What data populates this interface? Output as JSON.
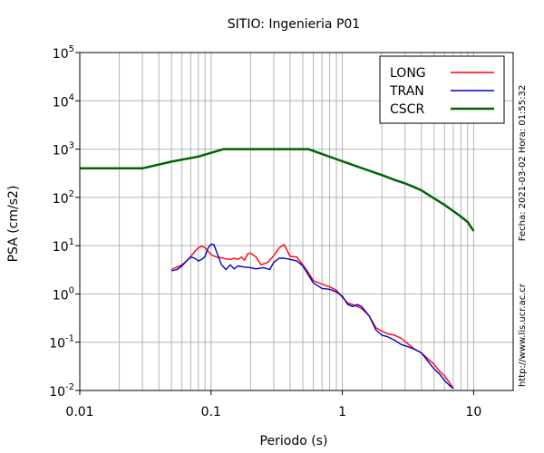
{
  "chart_data": {
    "type": "line",
    "title": "SITIO: Ingenieria P01",
    "xlabel": "Periodo (s)",
    "ylabel": "PSA (cm/s2)",
    "x_scale": "log",
    "y_scale": "log",
    "xlim": [
      0.01,
      20
    ],
    "ylim": [
      0.01,
      100000
    ],
    "x_ticks": [
      {
        "value": 0.01,
        "label": "0.01"
      },
      {
        "value": 0.1,
        "label": "0.1"
      },
      {
        "value": 1,
        "label": "1"
      },
      {
        "value": 10,
        "label": "10"
      }
    ],
    "y_ticks": [
      {
        "value": 0.01,
        "base": "10",
        "exp": "-2"
      },
      {
        "value": 0.1,
        "base": "10",
        "exp": "-1"
      },
      {
        "value": 1,
        "base": "10",
        "exp": "0"
      },
      {
        "value": 10,
        "base": "10",
        "exp": "1"
      },
      {
        "value": 100,
        "base": "10",
        "exp": "2"
      },
      {
        "value": 1000,
        "base": "10",
        "exp": "3"
      },
      {
        "value": 10000,
        "base": "10",
        "exp": "4"
      },
      {
        "value": 100000,
        "base": "10",
        "exp": "5"
      }
    ],
    "grid": true,
    "legend_position": "top-right",
    "series": [
      {
        "name": "LONG",
        "color": "#ff0000",
        "x": [
          0.05,
          0.055,
          0.06,
          0.065,
          0.07,
          0.075,
          0.08,
          0.085,
          0.09,
          0.1,
          0.11,
          0.12,
          0.13,
          0.14,
          0.15,
          0.16,
          0.17,
          0.18,
          0.19,
          0.2,
          0.22,
          0.24,
          0.27,
          0.3,
          0.33,
          0.36,
          0.4,
          0.45,
          0.5,
          0.55,
          0.6,
          0.7,
          0.8,
          0.9,
          1.0,
          1.1,
          1.2,
          1.3,
          1.4,
          1.6,
          1.8,
          2.0,
          2.2,
          2.5,
          2.8,
          3.2,
          3.6,
          4.0,
          4.5,
          5.0,
          5.5,
          6.0,
          6.5,
          7.0
        ],
        "values": [
          3.2,
          3.6,
          4.0,
          4.8,
          6.0,
          7.5,
          9.0,
          9.8,
          9.0,
          6.5,
          5.8,
          5.6,
          5.3,
          5.2,
          5.5,
          5.2,
          5.8,
          5.0,
          6.8,
          7.0,
          5.8,
          4.0,
          4.5,
          6.2,
          9.0,
          10.5,
          6.0,
          5.8,
          4.0,
          2.8,
          1.9,
          1.6,
          1.4,
          1.2,
          0.85,
          0.65,
          0.6,
          0.55,
          0.5,
          0.35,
          0.2,
          0.17,
          0.15,
          0.14,
          0.12,
          0.09,
          0.07,
          0.06,
          0.045,
          0.035,
          0.025,
          0.02,
          0.015,
          0.011
        ]
      },
      {
        "name": "TRAN",
        "color": "#0000cc",
        "x": [
          0.05,
          0.055,
          0.06,
          0.065,
          0.07,
          0.075,
          0.08,
          0.085,
          0.09,
          0.095,
          0.1,
          0.105,
          0.11,
          0.12,
          0.13,
          0.14,
          0.15,
          0.16,
          0.18,
          0.2,
          0.22,
          0.25,
          0.28,
          0.3,
          0.33,
          0.36,
          0.4,
          0.45,
          0.5,
          0.55,
          0.6,
          0.7,
          0.8,
          0.9,
          1.0,
          1.1,
          1.2,
          1.3,
          1.4,
          1.6,
          1.8,
          2.0,
          2.2,
          2.5,
          2.8,
          3.2,
          3.6,
          4.0,
          4.5,
          5.0,
          5.5,
          6.0,
          6.5,
          7.0
        ],
        "values": [
          3.0,
          3.2,
          3.8,
          4.8,
          5.8,
          5.5,
          4.8,
          5.2,
          6.0,
          9.0,
          10.8,
          10.5,
          7.5,
          4.0,
          3.2,
          4.0,
          3.3,
          3.8,
          3.6,
          3.5,
          3.3,
          3.5,
          3.2,
          4.5,
          5.5,
          5.5,
          5.2,
          4.8,
          3.8,
          2.5,
          1.7,
          1.3,
          1.25,
          1.1,
          0.9,
          0.6,
          0.55,
          0.6,
          0.55,
          0.35,
          0.18,
          0.14,
          0.13,
          0.11,
          0.09,
          0.08,
          0.07,
          0.06,
          0.04,
          0.028,
          0.022,
          0.016,
          0.013,
          0.011
        ]
      },
      {
        "name": "CSCR",
        "color": "#006400",
        "x": [
          0.01,
          0.03,
          0.05,
          0.08,
          0.125,
          0.2,
          0.3,
          0.55,
          1.0,
          1.5,
          2.0,
          2.5,
          3.0,
          3.5,
          4.0,
          5.0,
          6.0,
          7.0,
          8.0,
          9.0,
          10.0
        ],
        "values": [
          400,
          400,
          550,
          700,
          1000,
          1000,
          1000,
          1000,
          560,
          380,
          290,
          230,
          195,
          165,
          140,
          95,
          70,
          52,
          40,
          31,
          20
        ]
      }
    ]
  },
  "side_notes": {
    "date_time": "Fecha: 2021-03-02  Hora: 01:55:32",
    "url": "http://www.lis.ucr.ac.cr"
  }
}
